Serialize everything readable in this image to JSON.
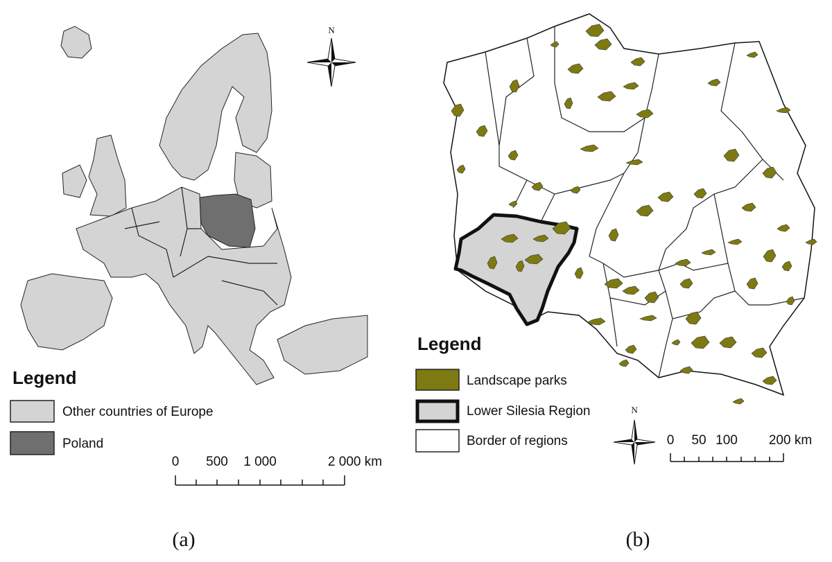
{
  "panels": [
    {
      "north": "N",
      "legend": {
        "title": "Legend",
        "items": [
          "Other countries of Europe",
          "Poland"
        ]
      },
      "scale": [
        "0",
        "500",
        "1 000",
        "2 000 km"
      ],
      "caption": "(a)"
    },
    {
      "north": "N",
      "legend": {
        "title": "Legend",
        "items": [
          "Landscape parks",
          "Lower Silesia Region",
          "Border of regions"
        ]
      },
      "scale": [
        "0",
        "50",
        "100",
        "200 km"
      ],
      "caption": "(b)"
    }
  ]
}
